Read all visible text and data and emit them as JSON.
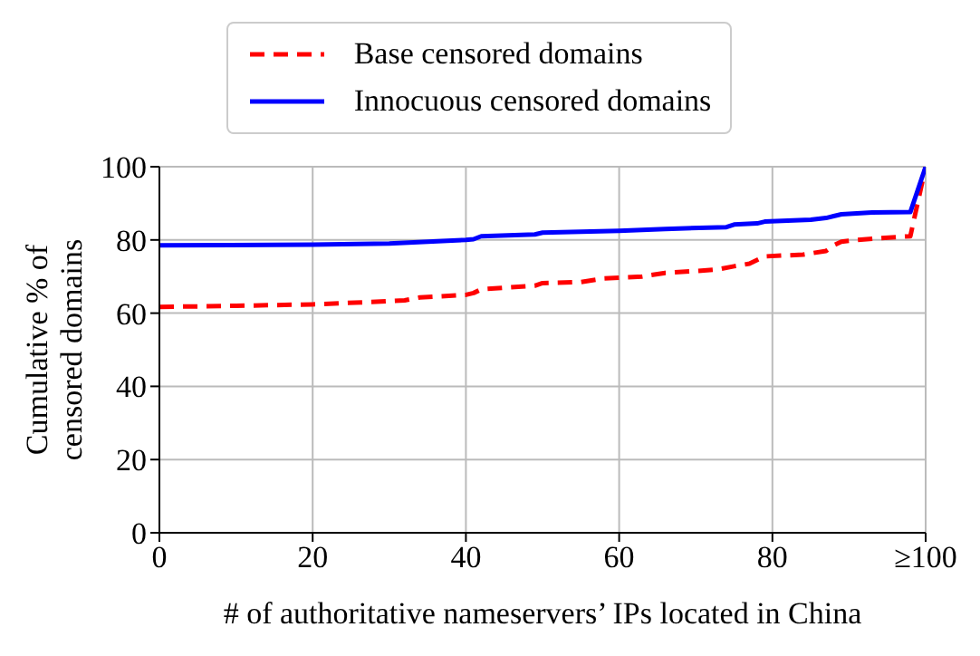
{
  "chart_data": {
    "type": "line",
    "xlabel": "# of authoritative nameservers’ IPs located in China",
    "ylabel": "Cumulative % of censored domains",
    "xlim": [
      0,
      100
    ],
    "xticks": [
      0,
      20,
      40,
      60,
      80,
      {
        "value": 100,
        "label": "≥100"
      }
    ],
    "ylim": [
      0,
      100
    ],
    "yticks": [
      0,
      20,
      40,
      60,
      80,
      100
    ],
    "grid": true,
    "legend": "top",
    "marker": "none",
    "series": [
      {
        "name": "Base censored domains",
        "color": "#ff0000",
        "line_style": "dashed",
        "x": [
          0,
          10,
          20,
          27,
          32,
          34,
          40,
          41,
          42,
          49,
          50,
          55,
          58,
          63,
          66,
          70,
          73,
          75,
          77,
          79,
          84,
          87,
          88,
          89,
          91,
          94,
          98,
          100
        ],
        "values": [
          61.7,
          62,
          62.4,
          63,
          63.5,
          64.3,
          65,
          65.5,
          66.5,
          67.5,
          68.2,
          68.5,
          69.5,
          70,
          71,
          71.5,
          72,
          72.8,
          73.5,
          75.5,
          76,
          77,
          78.5,
          79.5,
          80,
          80.5,
          81,
          100
        ]
      },
      {
        "name": "Innocuous censored domains",
        "color": "#0000ff",
        "line_style": "solid",
        "x": [
          0,
          20,
          30,
          40,
          41,
          42,
          49,
          50,
          60,
          66,
          74,
          75,
          78,
          79,
          85,
          87,
          88,
          89,
          93,
          98,
          100
        ],
        "values": [
          78.5,
          78.7,
          79,
          80,
          80.2,
          81,
          81.5,
          82,
          82.5,
          83,
          83.5,
          84.2,
          84.5,
          85,
          85.5,
          86,
          86.5,
          87,
          87.5,
          87.6,
          100
        ]
      }
    ]
  }
}
